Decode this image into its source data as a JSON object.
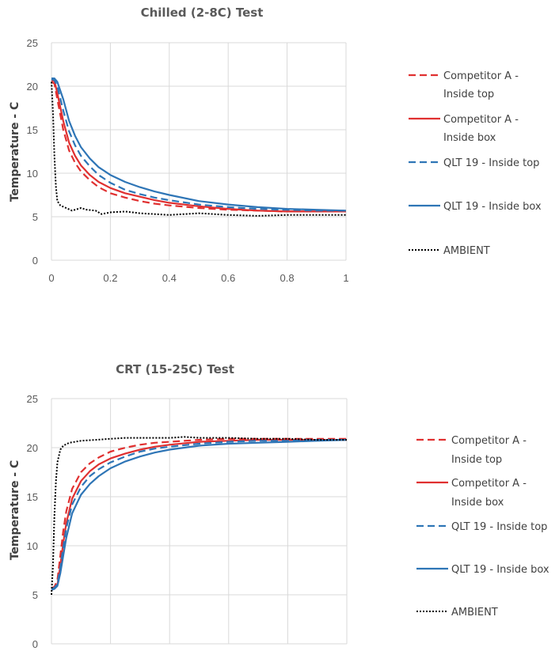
{
  "chart_data": [
    {
      "type": "line",
      "title": "Chilled (2-8C) Test",
      "xlabel": "",
      "ylabel": "Temperature - C",
      "xlim": [
        0,
        1
      ],
      "ylim": [
        0,
        25
      ],
      "x_ticks": [
        "0",
        "0.2",
        "0.4",
        "0.6",
        "0.8",
        "1"
      ],
      "y_ticks": [
        "0",
        "5",
        "10",
        "15",
        "20",
        "25"
      ],
      "grid": true,
      "legend_position": "right",
      "series": [
        {
          "name": "Competitor A  - Inside top",
          "color": "#e03030",
          "style": "dashed",
          "x": [
            0,
            0.01,
            0.02,
            0.04,
            0.06,
            0.08,
            0.1,
            0.13,
            0.16,
            0.2,
            0.25,
            0.3,
            0.35,
            0.4,
            0.5,
            0.6,
            0.7,
            0.8,
            0.9,
            1.0
          ],
          "y": [
            20.5,
            20.3,
            18.5,
            15.0,
            12.6,
            11.2,
            10.2,
            9.2,
            8.4,
            7.7,
            7.2,
            6.8,
            6.5,
            6.3,
            6.0,
            5.8,
            5.7,
            5.6,
            5.6,
            5.6
          ]
        },
        {
          "name": "Competitor A  - Inside box",
          "color": "#e03030",
          "style": "solid",
          "x": [
            0,
            0.01,
            0.02,
            0.04,
            0.06,
            0.08,
            0.1,
            0.13,
            0.16,
            0.2,
            0.25,
            0.3,
            0.35,
            0.4,
            0.5,
            0.6,
            0.7,
            0.8,
            0.9,
            1.0
          ],
          "y": [
            20.7,
            20.6,
            19.2,
            16.0,
            13.5,
            12.0,
            10.9,
            9.8,
            9.0,
            8.3,
            7.7,
            7.3,
            6.9,
            6.6,
            6.2,
            5.9,
            5.7,
            5.6,
            5.6,
            5.6
          ]
        },
        {
          "name": "QLT 19 - Inside top",
          "color": "#2e75b6",
          "style": "dashed",
          "x": [
            0,
            0.01,
            0.02,
            0.04,
            0.06,
            0.08,
            0.1,
            0.13,
            0.16,
            0.2,
            0.25,
            0.3,
            0.35,
            0.4,
            0.5,
            0.6,
            0.7,
            0.8,
            0.9,
            1.0
          ],
          "y": [
            20.8,
            20.7,
            20.0,
            17.2,
            14.8,
            13.2,
            12.0,
            10.8,
            9.8,
            8.9,
            8.1,
            7.6,
            7.2,
            6.9,
            6.4,
            6.1,
            5.9,
            5.8,
            5.7,
            5.7
          ]
        },
        {
          "name": "QLT 19 - Inside box",
          "color": "#2e75b6",
          "style": "solid",
          "x": [
            0,
            0.01,
            0.02,
            0.04,
            0.06,
            0.08,
            0.1,
            0.13,
            0.16,
            0.2,
            0.25,
            0.3,
            0.35,
            0.4,
            0.5,
            0.6,
            0.7,
            0.8,
            0.9,
            1.0
          ],
          "y": [
            20.9,
            20.9,
            20.5,
            18.5,
            16.0,
            14.3,
            13.0,
            11.7,
            10.7,
            9.8,
            9.0,
            8.4,
            7.9,
            7.5,
            6.8,
            6.4,
            6.1,
            5.9,
            5.8,
            5.7
          ]
        },
        {
          "name": "AMBIENT",
          "color": "#000000",
          "style": "dotted",
          "x": [
            0,
            0.005,
            0.01,
            0.015,
            0.02,
            0.03,
            0.05,
            0.07,
            0.1,
            0.12,
            0.15,
            0.17,
            0.2,
            0.25,
            0.3,
            0.35,
            0.4,
            0.45,
            0.5,
            0.6,
            0.7,
            0.8,
            0.9,
            1.0
          ],
          "y": [
            20.5,
            17.0,
            12.0,
            8.5,
            6.8,
            6.3,
            6.0,
            5.7,
            6.0,
            5.8,
            5.7,
            5.3,
            5.5,
            5.6,
            5.4,
            5.3,
            5.2,
            5.3,
            5.4,
            5.2,
            5.1,
            5.2,
            5.2,
            5.2
          ]
        }
      ]
    },
    {
      "type": "line",
      "title": "CRT (15-25C) Test",
      "xlabel": "",
      "ylabel": "Temperature - C",
      "xlim": [
        0,
        1
      ],
      "ylim": [
        0,
        25
      ],
      "y_ticks": [
        "0",
        "5",
        "10",
        "15",
        "20",
        "25"
      ],
      "grid": true,
      "legend_position": "right",
      "series": [
        {
          "name": "Competitor A  - Inside top",
          "color": "#e03030",
          "style": "dashed",
          "x": [
            0,
            0.01,
            0.02,
            0.03,
            0.04,
            0.05,
            0.07,
            0.1,
            0.13,
            0.16,
            0.2,
            0.25,
            0.3,
            0.35,
            0.4,
            0.5,
            0.6,
            0.7,
            0.8,
            0.9,
            1.0
          ],
          "y": [
            5.7,
            5.8,
            6.5,
            9.0,
            11.5,
            13.5,
            15.8,
            17.5,
            18.4,
            19.0,
            19.6,
            20.0,
            20.3,
            20.5,
            20.6,
            20.8,
            20.9,
            20.9,
            20.9,
            20.9,
            20.9
          ]
        },
        {
          "name": "Competitor A  - Inside box",
          "color": "#e03030",
          "style": "solid",
          "x": [
            0,
            0.01,
            0.02,
            0.03,
            0.04,
            0.05,
            0.07,
            0.1,
            0.13,
            0.16,
            0.2,
            0.25,
            0.3,
            0.35,
            0.4,
            0.5,
            0.6,
            0.7,
            0.8,
            0.9,
            1.0
          ],
          "y": [
            5.6,
            5.7,
            6.0,
            8.0,
            10.3,
            12.3,
            14.8,
            16.6,
            17.6,
            18.3,
            18.9,
            19.4,
            19.8,
            20.1,
            20.3,
            20.6,
            20.7,
            20.8,
            20.8,
            20.8,
            20.8
          ]
        },
        {
          "name": "QLT 19 - Inside top",
          "color": "#2e75b6",
          "style": "dashed",
          "x": [
            0,
            0.01,
            0.02,
            0.03,
            0.04,
            0.05,
            0.07,
            0.1,
            0.13,
            0.16,
            0.2,
            0.25,
            0.3,
            0.35,
            0.4,
            0.5,
            0.6,
            0.7,
            0.8,
            0.9,
            1.0
          ],
          "y": [
            5.6,
            5.7,
            6.1,
            7.8,
            9.8,
            11.8,
            14.2,
            16.0,
            17.1,
            17.8,
            18.5,
            19.1,
            19.6,
            19.9,
            20.1,
            20.4,
            20.6,
            20.7,
            20.7,
            20.8,
            20.8
          ]
        },
        {
          "name": "QLT 19 - Inside box",
          "color": "#2e75b6",
          "style": "solid",
          "x": [
            0,
            0.01,
            0.02,
            0.03,
            0.04,
            0.05,
            0.07,
            0.1,
            0.13,
            0.16,
            0.2,
            0.25,
            0.3,
            0.35,
            0.4,
            0.5,
            0.6,
            0.7,
            0.8,
            0.9,
            1.0
          ],
          "y": [
            5.5,
            5.6,
            5.9,
            7.2,
            9.0,
            10.8,
            13.3,
            15.2,
            16.3,
            17.1,
            17.9,
            18.6,
            19.1,
            19.5,
            19.8,
            20.2,
            20.4,
            20.5,
            20.6,
            20.7,
            20.8
          ]
        },
        {
          "name": "AMBIENT",
          "color": "#000000",
          "style": "dotted",
          "x": [
            0,
            0.005,
            0.01,
            0.015,
            0.02,
            0.03,
            0.04,
            0.06,
            0.08,
            0.1,
            0.15,
            0.2,
            0.25,
            0.3,
            0.4,
            0.45,
            0.5,
            0.6,
            0.7,
            0.8,
            0.9,
            1.0
          ],
          "y": [
            5.0,
            8.0,
            13.0,
            16.5,
            18.5,
            19.8,
            20.2,
            20.5,
            20.6,
            20.7,
            20.8,
            20.9,
            21.0,
            21.0,
            21.0,
            21.1,
            21.0,
            21.0,
            20.9,
            20.9,
            20.8,
            20.8
          ]
        }
      ]
    }
  ],
  "colors": {
    "competitor": "#e03030",
    "qlt": "#2e75b6",
    "ambient": "#000000",
    "grid": "#d9d9d9"
  }
}
